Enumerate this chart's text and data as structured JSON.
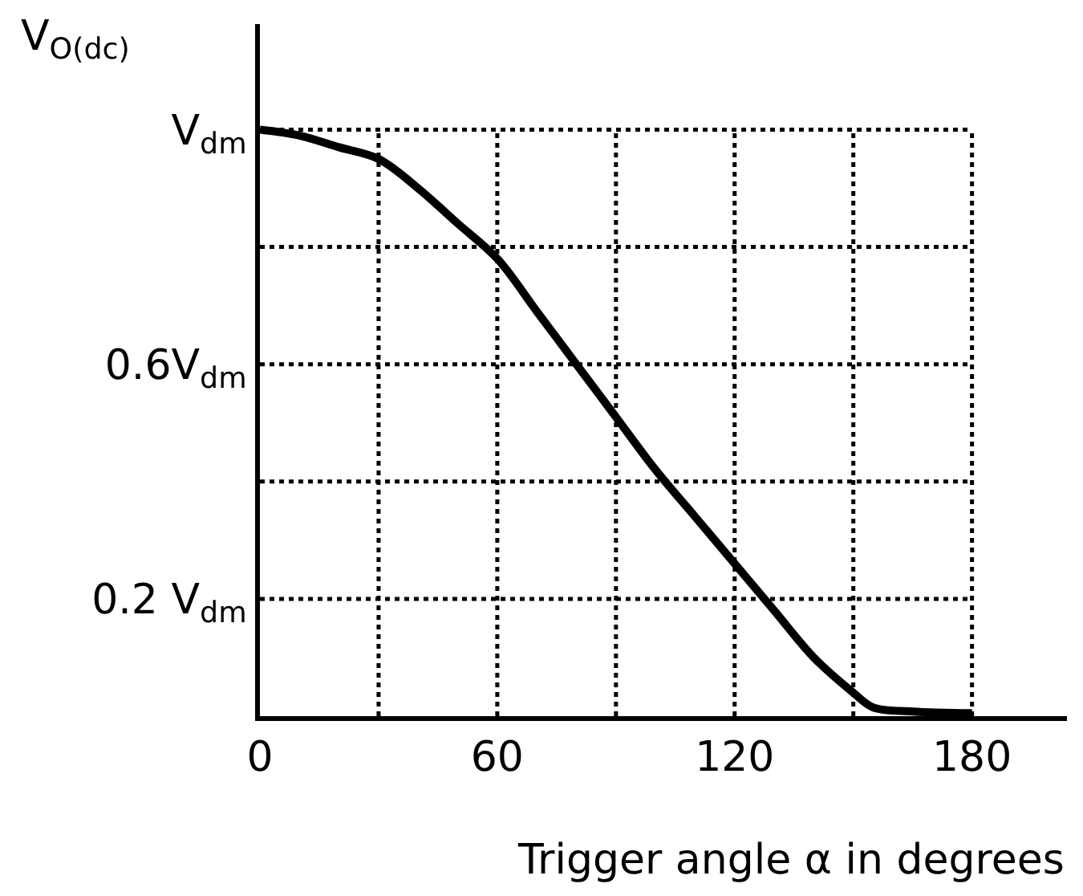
{
  "chart_data": {
    "type": "line",
    "xlabel": "Trigger angle α in degrees",
    "ylabel": "V$_{O(dc)}$",
    "x": [
      0,
      10,
      20,
      30,
      40,
      50,
      60,
      70,
      80,
      90,
      100,
      110,
      120,
      130,
      140,
      150,
      155,
      165,
      180
    ],
    "series": [
      {
        "color": "#000000",
        "values": [
          1.0,
          0.99,
          0.97,
          0.95,
          0.9,
          0.84,
          0.78,
          0.69,
          0.6,
          0.51,
          0.42,
          0.34,
          0.26,
          0.18,
          0.1,
          0.04,
          0.015,
          0.008,
          0.005
        ]
      }
    ],
    "xlim": [
      0,
      204
    ],
    "ylim": [
      0,
      1.18
    ],
    "xticks": [
      0,
      {
        "value": 30,
        "label": null
      },
      60,
      {
        "value": 90,
        "label": null
      },
      120,
      {
        "value": 150,
        "label": null
      },
      180
    ],
    "yticks": [
      {
        "value": 0.2,
        "label": "0.2 V$_{dm}$"
      },
      {
        "value": 0.4,
        "label": null
      },
      {
        "value": 0.6,
        "label": "0.6V$_{dm}$"
      },
      {
        "value": 0.8,
        "label": null
      },
      {
        "value": 1,
        "label": "V$_{dm}$"
      }
    ],
    "grid": true,
    "marker": "none",
    "line_style": "solid"
  }
}
